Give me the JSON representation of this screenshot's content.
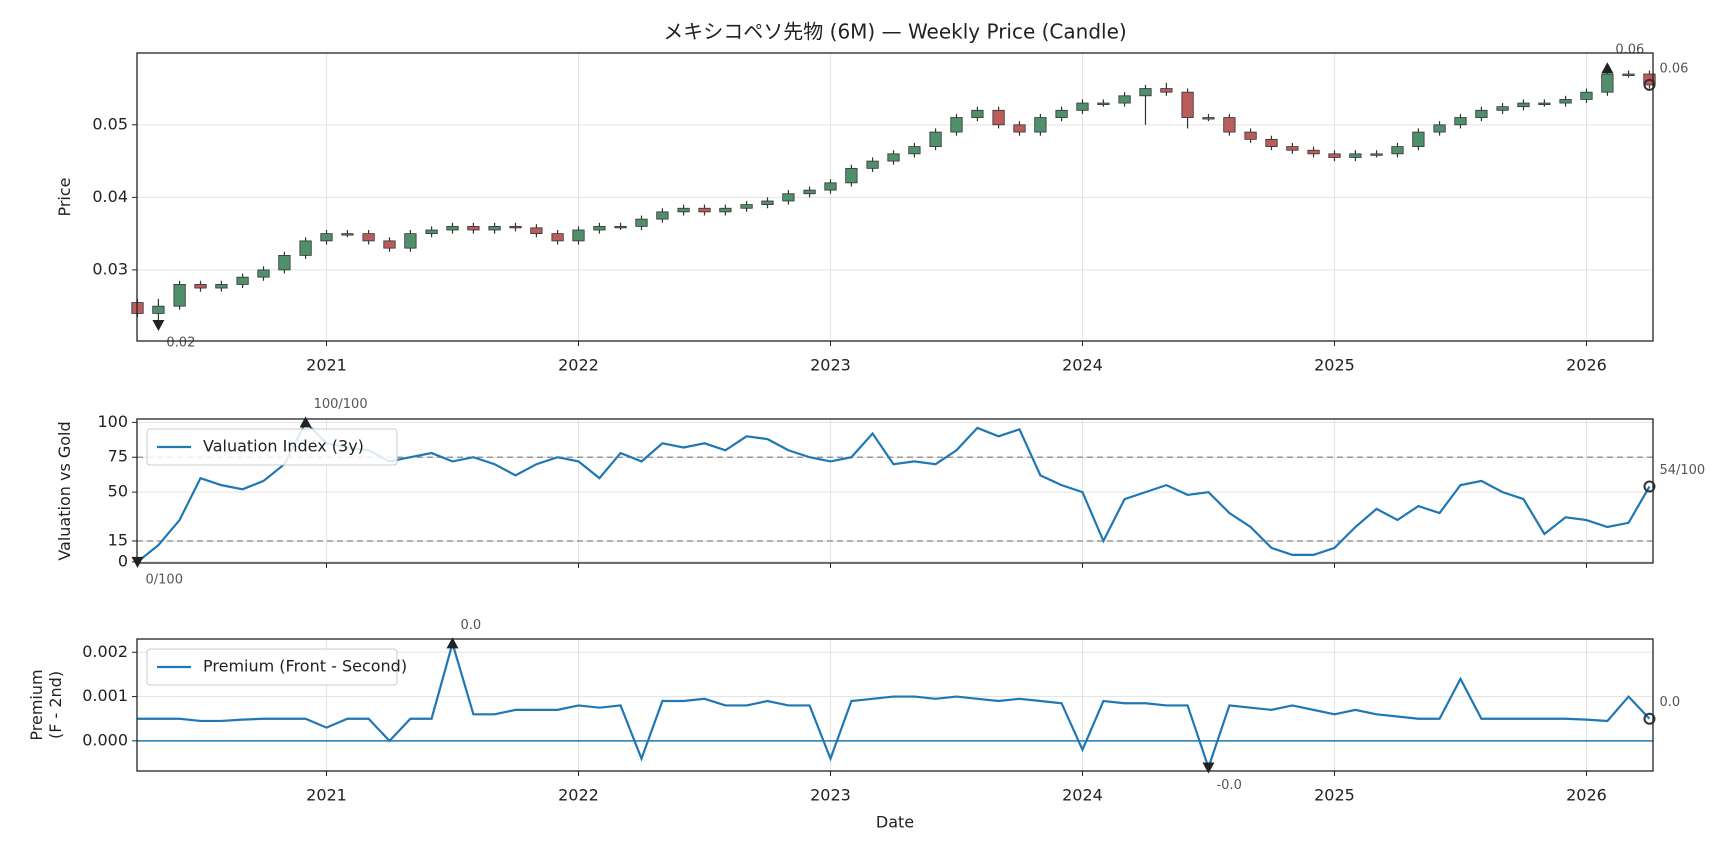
{
  "chart_data": [
    {
      "type": "candlestick",
      "title": "メキシコペソ先物 (6M) — Weekly Price (Candle)",
      "ylabel": [
        "Price"
      ],
      "x": [
        2020.25,
        2020.333,
        2020.417,
        2020.5,
        2020.583,
        2020.667,
        2020.75,
        2020.833,
        2020.917,
        2021.0,
        2021.083,
        2021.167,
        2021.25,
        2021.333,
        2021.417,
        2021.5,
        2021.583,
        2021.667,
        2021.75,
        2021.833,
        2021.917,
        2022.0,
        2022.083,
        2022.167,
        2022.25,
        2022.333,
        2022.417,
        2022.5,
        2022.583,
        2022.667,
        2022.75,
        2022.833,
        2022.917,
        2023.0,
        2023.083,
        2023.167,
        2023.25,
        2023.333,
        2023.417,
        2023.5,
        2023.583,
        2023.667,
        2023.75,
        2023.833,
        2023.917,
        2024.0,
        2024.083,
        2024.167,
        2024.25,
        2024.333,
        2024.417,
        2024.5,
        2024.583,
        2024.667,
        2024.75,
        2024.833,
        2024.917,
        2025.0,
        2025.083,
        2025.167,
        2025.25,
        2025.333,
        2025.417,
        2025.5,
        2025.583,
        2025.667,
        2025.75,
        2025.833,
        2025.917,
        2026.0,
        2026.083,
        2026.167,
        2026.25
      ],
      "open": [
        0.0255,
        0.024,
        0.025,
        0.028,
        0.0275,
        0.028,
        0.029,
        0.03,
        0.032,
        0.034,
        0.035,
        0.035,
        0.034,
        0.033,
        0.035,
        0.0355,
        0.036,
        0.0355,
        0.036,
        0.0358,
        0.035,
        0.034,
        0.0355,
        0.036,
        0.036,
        0.037,
        0.038,
        0.0385,
        0.038,
        0.0385,
        0.039,
        0.0395,
        0.0405,
        0.041,
        0.042,
        0.044,
        0.045,
        0.046,
        0.047,
        0.049,
        0.051,
        0.052,
        0.05,
        0.049,
        0.051,
        0.052,
        0.053,
        0.053,
        0.054,
        0.055,
        0.0545,
        0.051,
        0.051,
        0.049,
        0.048,
        0.047,
        0.0465,
        0.046,
        0.0455,
        0.046,
        0.046,
        0.047,
        0.049,
        0.05,
        0.051,
        0.052,
        0.0525,
        0.053,
        0.053,
        0.0535,
        0.0545,
        0.057,
        0.057
      ],
      "high": [
        0.026,
        0.026,
        0.0285,
        0.0285,
        0.0285,
        0.0295,
        0.0305,
        0.0325,
        0.0345,
        0.0355,
        0.0355,
        0.0355,
        0.0345,
        0.0355,
        0.036,
        0.0365,
        0.0365,
        0.0365,
        0.0365,
        0.0363,
        0.0355,
        0.036,
        0.0365,
        0.0365,
        0.0375,
        0.0385,
        0.039,
        0.039,
        0.039,
        0.0395,
        0.04,
        0.041,
        0.0415,
        0.0425,
        0.0445,
        0.0455,
        0.0465,
        0.0475,
        0.0495,
        0.0515,
        0.0525,
        0.0525,
        0.0505,
        0.0515,
        0.0525,
        0.0535,
        0.0535,
        0.0545,
        0.0555,
        0.0558,
        0.055,
        0.0515,
        0.0515,
        0.0495,
        0.0485,
        0.0475,
        0.047,
        0.0465,
        0.0465,
        0.0465,
        0.0475,
        0.0495,
        0.0505,
        0.0515,
        0.0525,
        0.053,
        0.0535,
        0.0535,
        0.054,
        0.055,
        0.0578,
        0.0575,
        0.0575
      ],
      "low": [
        0.0235,
        0.0224,
        0.0245,
        0.027,
        0.027,
        0.0275,
        0.0285,
        0.0295,
        0.0315,
        0.0335,
        0.0345,
        0.0335,
        0.0325,
        0.0325,
        0.0345,
        0.035,
        0.035,
        0.035,
        0.0353,
        0.0345,
        0.0335,
        0.0335,
        0.035,
        0.0355,
        0.0355,
        0.0365,
        0.0375,
        0.0375,
        0.0375,
        0.038,
        0.0385,
        0.039,
        0.04,
        0.0405,
        0.0415,
        0.0435,
        0.0445,
        0.0455,
        0.0465,
        0.0485,
        0.0505,
        0.0495,
        0.0485,
        0.0485,
        0.0505,
        0.0515,
        0.0525,
        0.0525,
        0.05,
        0.054,
        0.0495,
        0.0505,
        0.0485,
        0.0475,
        0.0465,
        0.046,
        0.0455,
        0.045,
        0.045,
        0.0455,
        0.0455,
        0.0465,
        0.0485,
        0.0495,
        0.0505,
        0.0515,
        0.052,
        0.0525,
        0.0525,
        0.053,
        0.054,
        0.0565,
        0.055
      ],
      "close": [
        0.024,
        0.025,
        0.028,
        0.0275,
        0.028,
        0.029,
        0.03,
        0.032,
        0.034,
        0.035,
        0.035,
        0.034,
        0.033,
        0.035,
        0.0355,
        0.036,
        0.0355,
        0.036,
        0.0358,
        0.035,
        0.034,
        0.0355,
        0.036,
        0.036,
        0.037,
        0.038,
        0.0385,
        0.038,
        0.0385,
        0.039,
        0.0395,
        0.0405,
        0.041,
        0.042,
        0.044,
        0.045,
        0.046,
        0.047,
        0.049,
        0.051,
        0.052,
        0.05,
        0.049,
        0.051,
        0.052,
        0.053,
        0.053,
        0.054,
        0.055,
        0.0545,
        0.051,
        0.051,
        0.049,
        0.048,
        0.047,
        0.0465,
        0.046,
        0.0455,
        0.046,
        0.046,
        0.047,
        0.049,
        0.05,
        0.051,
        0.052,
        0.0525,
        0.053,
        0.053,
        0.0535,
        0.0545,
        0.057,
        0.057,
        0.0555
      ],
      "up_color": "#4f8f6a",
      "down_color": "#b85c5c",
      "edge_color": "#333333",
      "xlim": [
        2020.248,
        2026.264
      ],
      "xticks": [
        2021,
        2022,
        2023,
        2024,
        2025,
        2026
      ],
      "xtick_labels": true,
      "ylim": [
        0.0202,
        0.0599
      ],
      "yticks": [
        0.03,
        0.04,
        0.05
      ],
      "grid": true,
      "annotations": [
        {
          "label": "0.06",
          "x": 2026.083,
          "y": 0.0578,
          "marker": "^"
        },
        {
          "label": "0.02",
          "x": 2020.333,
          "y": 0.0224,
          "marker": "v"
        },
        {
          "label": "0.06",
          "x": 2026.25,
          "y": 0.0555,
          "marker": "o"
        }
      ]
    },
    {
      "type": "line",
      "ylabel": [
        "Valuation vs Gold"
      ],
      "x": [
        2020.25,
        2020.333,
        2020.417,
        2020.5,
        2020.583,
        2020.667,
        2020.75,
        2020.833,
        2020.917,
        2021.0,
        2021.083,
        2021.167,
        2021.25,
        2021.333,
        2021.417,
        2021.5,
        2021.583,
        2021.667,
        2021.75,
        2021.833,
        2021.917,
        2022.0,
        2022.083,
        2022.167,
        2022.25,
        2022.333,
        2022.417,
        2022.5,
        2022.583,
        2022.667,
        2022.75,
        2022.833,
        2022.917,
        2023.0,
        2023.083,
        2023.167,
        2023.25,
        2023.333,
        2023.417,
        2023.5,
        2023.583,
        2023.667,
        2023.75,
        2023.833,
        2023.917,
        2024.0,
        2024.083,
        2024.167,
        2024.25,
        2024.333,
        2024.417,
        2024.5,
        2024.583,
        2024.667,
        2024.75,
        2024.833,
        2024.917,
        2025.0,
        2025.083,
        2025.167,
        2025.25,
        2025.333,
        2025.417,
        2025.5,
        2025.583,
        2025.667,
        2025.75,
        2025.833,
        2025.917,
        2026.0,
        2026.083,
        2026.167,
        2026.25
      ],
      "series": [
        {
          "name": "Valuation Index (3y)",
          "color": "#1f77b4",
          "values": [
            0,
            12,
            30,
            60,
            55,
            52,
            58,
            70,
            100,
            85,
            82,
            80,
            72,
            75,
            78,
            72,
            75,
            70,
            62,
            70,
            75,
            72,
            60,
            78,
            72,
            85,
            82,
            85,
            80,
            90,
            88,
            80,
            75,
            72,
            75,
            92,
            70,
            72,
            70,
            80,
            96,
            90,
            95,
            62,
            55,
            50,
            15,
            45,
            50,
            55,
            48,
            50,
            35,
            25,
            10,
            5,
            5,
            10,
            25,
            38,
            30,
            40,
            35,
            55,
            58,
            50,
            45,
            20,
            32,
            30,
            25,
            28,
            54
          ]
        }
      ],
      "xlim": [
        2020.248,
        2026.264
      ],
      "xticks": [
        2021,
        2022,
        2023,
        2024,
        2025,
        2026
      ],
      "xtick_labels": false,
      "ylim": [
        -0.8,
        102.4
      ],
      "yticks": [
        0,
        15,
        50,
        75,
        100
      ],
      "grid": true,
      "legend": "upper left",
      "hlines": [
        75,
        15
      ],
      "hline_color": "#999999",
      "hline_dash": true,
      "annotations": [
        {
          "label": "0/100",
          "x": 2020.25,
          "y": 0,
          "marker": "v"
        },
        {
          "label": "100/100",
          "x": 2020.917,
          "y": 100,
          "marker": "^"
        },
        {
          "label": "54/100",
          "x": 2026.25,
          "y": 54,
          "marker": "o"
        }
      ]
    },
    {
      "type": "line",
      "ylabel": [
        "Premium",
        "(F - 2nd)"
      ],
      "xlabel": "Date",
      "x": [
        2020.25,
        2020.333,
        2020.417,
        2020.5,
        2020.583,
        2020.667,
        2020.75,
        2020.833,
        2020.917,
        2021.0,
        2021.083,
        2021.167,
        2021.25,
        2021.333,
        2021.417,
        2021.5,
        2021.583,
        2021.667,
        2021.75,
        2021.833,
        2021.917,
        2022.0,
        2022.083,
        2022.167,
        2022.25,
        2022.333,
        2022.417,
        2022.5,
        2022.583,
        2022.667,
        2022.75,
        2022.833,
        2022.917,
        2023.0,
        2023.083,
        2023.167,
        2023.25,
        2023.333,
        2023.417,
        2023.5,
        2023.583,
        2023.667,
        2023.75,
        2023.833,
        2023.917,
        2024.0,
        2024.083,
        2024.167,
        2024.25,
        2024.333,
        2024.417,
        2024.5,
        2024.583,
        2024.667,
        2024.75,
        2024.833,
        2024.917,
        2025.0,
        2025.083,
        2025.167,
        2025.25,
        2025.333,
        2025.417,
        2025.5,
        2025.583,
        2025.667,
        2025.75,
        2025.833,
        2025.917,
        2026.0,
        2026.083,
        2026.167,
        2026.25
      ],
      "series": [
        {
          "name": "Premium (Front - Second)",
          "color": "#1f77b4",
          "values": [
            0.0005,
            0.0005,
            0.0005,
            0.00045,
            0.00045,
            0.00048,
            0.0005,
            0.0005,
            0.0005,
            0.0003,
            0.0005,
            0.0005,
            0.0,
            0.0005,
            0.0005,
            0.0022,
            0.0006,
            0.0006,
            0.0007,
            0.0007,
            0.0007,
            0.0008,
            0.00075,
            0.0008,
            -0.0004,
            0.0009,
            0.0009,
            0.00095,
            0.0008,
            0.0008,
            0.0009,
            0.0008,
            0.0008,
            -0.0004,
            0.0009,
            0.00095,
            0.001,
            0.001,
            0.00095,
            0.001,
            0.00095,
            0.0009,
            0.00095,
            0.0009,
            0.00085,
            -0.0002,
            0.0009,
            0.00085,
            0.00085,
            0.0008,
            0.0008,
            -0.0006,
            0.0008,
            0.00075,
            0.0007,
            0.0008,
            0.0007,
            0.0006,
            0.0007,
            0.0006,
            0.00055,
            0.0005,
            0.0005,
            0.0014,
            0.0005,
            0.0005,
            0.0005,
            0.0005,
            0.0005,
            0.00048,
            0.00045,
            0.001,
            0.0005
          ]
        }
      ],
      "xlim": [
        2020.248,
        2026.264
      ],
      "xticks": [
        2021,
        2022,
        2023,
        2024,
        2025,
        2026
      ],
      "xtick_labels": true,
      "ylim": [
        -0.00068,
        0.0023
      ],
      "yticks": [
        {
          "value": 0,
          "label": "0.000"
        },
        0.001,
        0.002
      ],
      "grid": true,
      "legend": "upper left",
      "hlines": [
        0
      ],
      "hline_color": "#1f77b4",
      "hline_dash": false,
      "annotations": [
        {
          "label": "0.0",
          "x": 2021.5,
          "y": 0.0022,
          "marker": "^"
        },
        {
          "label": "-0.0",
          "x": 2024.5,
          "y": -0.0006,
          "marker": "v"
        },
        {
          "label": "0.0",
          "x": 2026.25,
          "y": 0.0005,
          "marker": "o"
        }
      ]
    }
  ]
}
